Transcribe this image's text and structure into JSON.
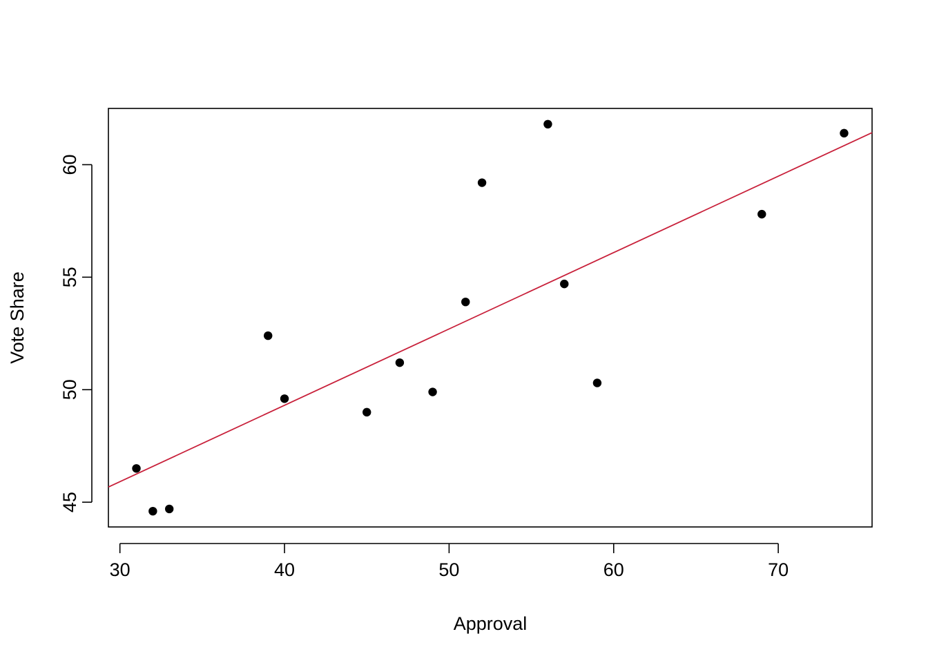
{
  "chart_data": {
    "type": "scatter",
    "title": "",
    "xlabel": "Approval",
    "ylabel": "Vote Share",
    "xlim": [
      29.3,
      75.7
    ],
    "ylim": [
      43.9,
      62.5
    ],
    "xticks": [
      30,
      40,
      50,
      60,
      70
    ],
    "yticks": [
      45,
      50,
      55,
      60
    ],
    "xtick_labels": [
      "30",
      "40",
      "50",
      "60",
      "70"
    ],
    "ytick_labels": [
      "45",
      "50",
      "55",
      "60"
    ],
    "grid": false,
    "points": [
      {
        "x": 31,
        "y": 46.5
      },
      {
        "x": 32,
        "y": 44.6
      },
      {
        "x": 33,
        "y": 44.7
      },
      {
        "x": 39,
        "y": 52.4
      },
      {
        "x": 40,
        "y": 49.6
      },
      {
        "x": 45,
        "y": 49.0
      },
      {
        "x": 47,
        "y": 51.2
      },
      {
        "x": 49,
        "y": 49.9
      },
      {
        "x": 51,
        "y": 53.9
      },
      {
        "x": 52,
        "y": 59.2
      },
      {
        "x": 56,
        "y": 61.8
      },
      {
        "x": 57,
        "y": 54.7
      },
      {
        "x": 59,
        "y": 50.3
      },
      {
        "x": 69,
        "y": 57.8
      },
      {
        "x": 74,
        "y": 61.4
      }
    ],
    "fit_line": {
      "intercept": 35.73,
      "slope": 0.3394
    },
    "colors": {
      "points": "#000000",
      "fit_line": "#c8203a"
    }
  }
}
